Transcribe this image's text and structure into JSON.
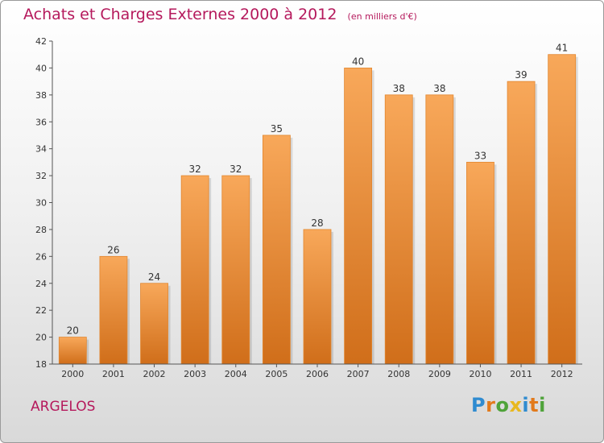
{
  "chart_data": {
    "type": "bar",
    "title": "Achats et Charges Externes 2000 à 2012",
    "unit": "(en milliers d'€)",
    "categories": [
      "2000",
      "2001",
      "2002",
      "2003",
      "2004",
      "2005",
      "2006",
      "2007",
      "2008",
      "2009",
      "2010",
      "2011",
      "2012"
    ],
    "values": [
      20,
      26,
      24,
      32,
      32,
      35,
      28,
      40,
      38,
      38,
      33,
      39,
      41
    ],
    "ylim": [
      18,
      42
    ],
    "yticks": [
      18,
      20,
      22,
      24,
      26,
      28,
      30,
      32,
      34,
      36,
      38,
      40,
      42
    ],
    "grid": false,
    "bar_color": "#f0903a",
    "label": "ARGELOS"
  },
  "brand": {
    "letters": [
      "P",
      "r",
      "o",
      "x",
      "i",
      "t",
      "i"
    ]
  },
  "colors": {
    "title": "#b5195c",
    "bar_light": "#f8a85a",
    "bar_dark": "#d06e1a",
    "axis": "#555555"
  }
}
